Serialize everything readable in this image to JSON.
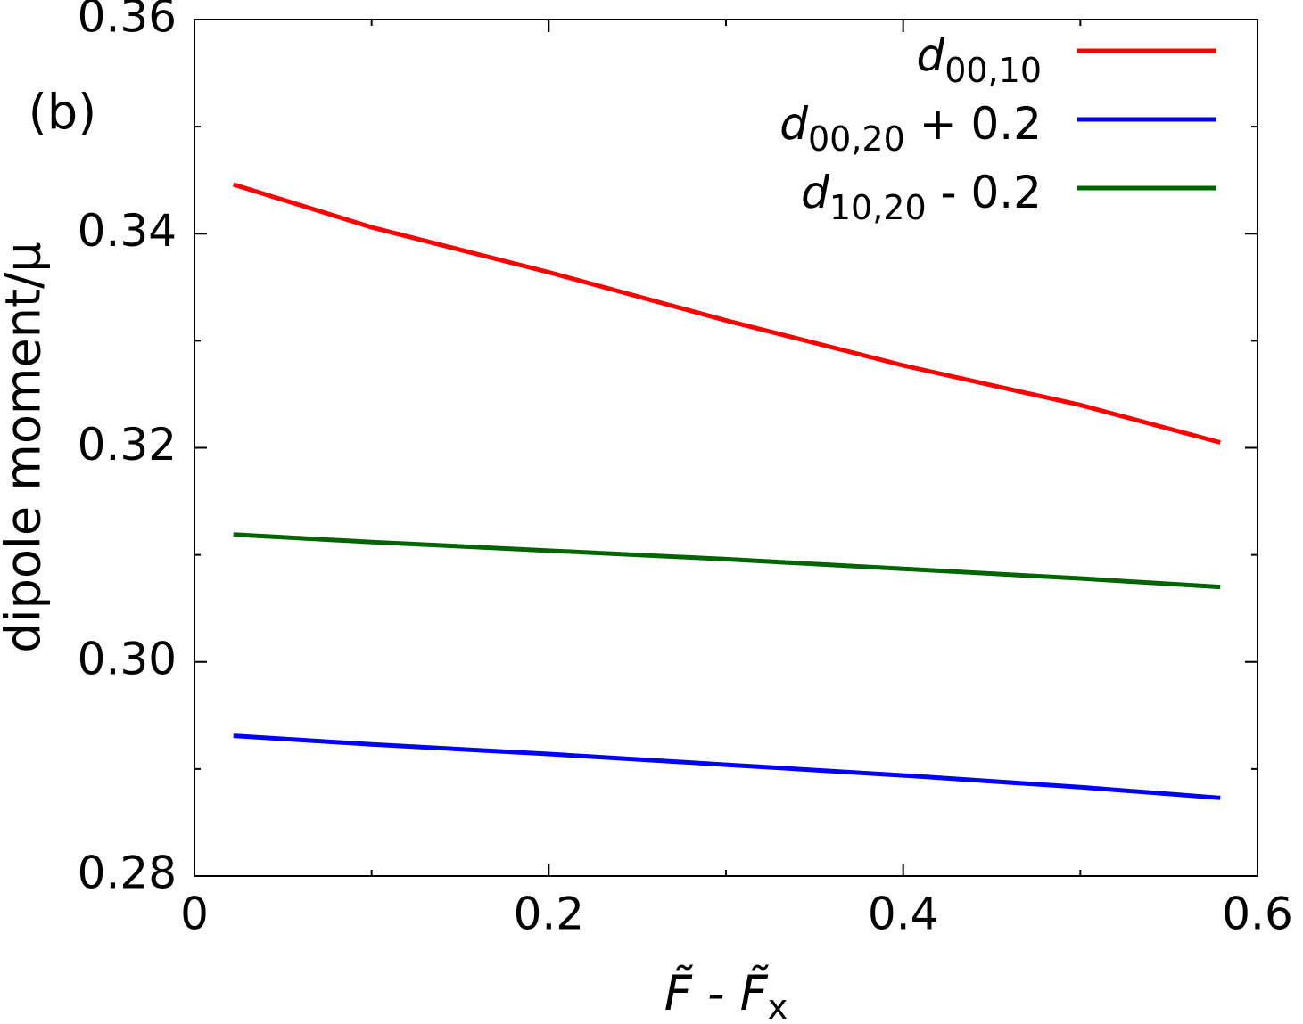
{
  "chart_data": {
    "type": "line",
    "annotation": "(b)",
    "xlabel": "F̃ - F̃x",
    "ylabel": "dipole moment/μ",
    "x": [
      0.022,
      0.1,
      0.2,
      0.3,
      0.4,
      0.5,
      0.579
    ],
    "series": [
      {
        "name": "d00,10",
        "color": "#ff0000",
        "values": [
          0.3446,
          0.3406,
          0.3364,
          0.3319,
          0.3277,
          0.324,
          0.3205
        ]
      },
      {
        "name": "d00,20 + 0.2",
        "color": "#0000ff",
        "values": [
          0.2931,
          0.2923,
          0.2914,
          0.2904,
          0.2894,
          0.2883,
          0.2873
        ]
      },
      {
        "name": "d10,20 - 0.2",
        "color": "#006400",
        "values": [
          0.3119,
          0.3112,
          0.3104,
          0.3096,
          0.3087,
          0.3078,
          0.307
        ]
      }
    ],
    "xlim": [
      0,
      0.6
    ],
    "xticks": [
      0,
      0.2,
      0.4,
      0.6
    ],
    "xticks_minor": [
      0.1,
      0.3,
      0.5
    ],
    "ylim": [
      0.28,
      0.36
    ],
    "yticks": [
      0.28,
      {
        "value": 0.3,
        "label": "0.30"
      },
      0.32,
      0.34,
      0.36
    ],
    "yticks_minor": [
      0.29,
      0.31,
      0.33,
      0.35
    ],
    "legend": "upper right",
    "grid": false
  }
}
